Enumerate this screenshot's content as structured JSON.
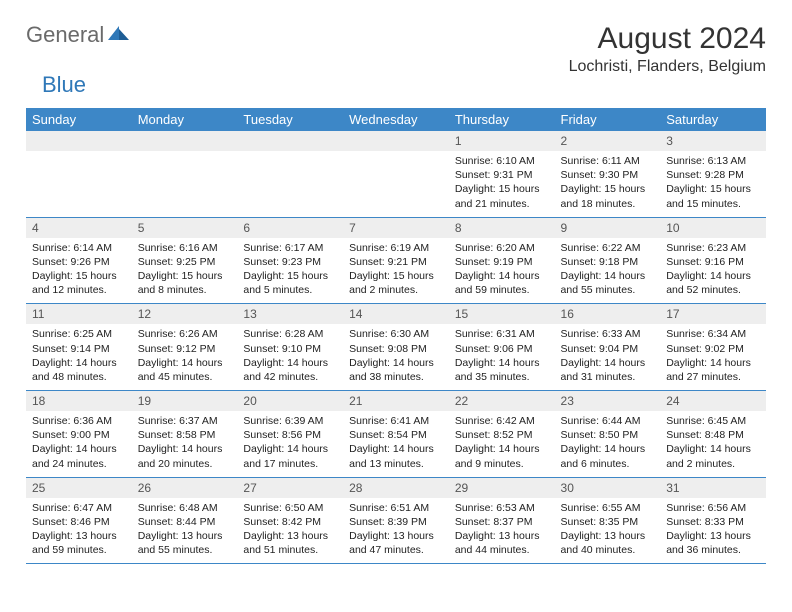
{
  "logo": {
    "general": "General",
    "blue": "Blue"
  },
  "title": {
    "month": "August 2024",
    "location": "Lochristi, Flanders, Belgium"
  },
  "colors": {
    "header_bg": "#3d87c7",
    "header_text": "#ffffff",
    "daynum_bg": "#eeeeee",
    "logo_gray": "#6a6a6a",
    "logo_blue": "#2f78b8",
    "border": "#3d87c7"
  },
  "weekdays": [
    "Sunday",
    "Monday",
    "Tuesday",
    "Wednesday",
    "Thursday",
    "Friday",
    "Saturday"
  ],
  "weeks": [
    [
      null,
      null,
      null,
      null,
      {
        "day": 1,
        "sunrise": "6:10 AM",
        "sunset": "9:31 PM",
        "daylight": "15 hours and 21 minutes."
      },
      {
        "day": 2,
        "sunrise": "6:11 AM",
        "sunset": "9:30 PM",
        "daylight": "15 hours and 18 minutes."
      },
      {
        "day": 3,
        "sunrise": "6:13 AM",
        "sunset": "9:28 PM",
        "daylight": "15 hours and 15 minutes."
      }
    ],
    [
      {
        "day": 4,
        "sunrise": "6:14 AM",
        "sunset": "9:26 PM",
        "daylight": "15 hours and 12 minutes."
      },
      {
        "day": 5,
        "sunrise": "6:16 AM",
        "sunset": "9:25 PM",
        "daylight": "15 hours and 8 minutes."
      },
      {
        "day": 6,
        "sunrise": "6:17 AM",
        "sunset": "9:23 PM",
        "daylight": "15 hours and 5 minutes."
      },
      {
        "day": 7,
        "sunrise": "6:19 AM",
        "sunset": "9:21 PM",
        "daylight": "15 hours and 2 minutes."
      },
      {
        "day": 8,
        "sunrise": "6:20 AM",
        "sunset": "9:19 PM",
        "daylight": "14 hours and 59 minutes."
      },
      {
        "day": 9,
        "sunrise": "6:22 AM",
        "sunset": "9:18 PM",
        "daylight": "14 hours and 55 minutes."
      },
      {
        "day": 10,
        "sunrise": "6:23 AM",
        "sunset": "9:16 PM",
        "daylight": "14 hours and 52 minutes."
      }
    ],
    [
      {
        "day": 11,
        "sunrise": "6:25 AM",
        "sunset": "9:14 PM",
        "daylight": "14 hours and 48 minutes."
      },
      {
        "day": 12,
        "sunrise": "6:26 AM",
        "sunset": "9:12 PM",
        "daylight": "14 hours and 45 minutes."
      },
      {
        "day": 13,
        "sunrise": "6:28 AM",
        "sunset": "9:10 PM",
        "daylight": "14 hours and 42 minutes."
      },
      {
        "day": 14,
        "sunrise": "6:30 AM",
        "sunset": "9:08 PM",
        "daylight": "14 hours and 38 minutes."
      },
      {
        "day": 15,
        "sunrise": "6:31 AM",
        "sunset": "9:06 PM",
        "daylight": "14 hours and 35 minutes."
      },
      {
        "day": 16,
        "sunrise": "6:33 AM",
        "sunset": "9:04 PM",
        "daylight": "14 hours and 31 minutes."
      },
      {
        "day": 17,
        "sunrise": "6:34 AM",
        "sunset": "9:02 PM",
        "daylight": "14 hours and 27 minutes."
      }
    ],
    [
      {
        "day": 18,
        "sunrise": "6:36 AM",
        "sunset": "9:00 PM",
        "daylight": "14 hours and 24 minutes."
      },
      {
        "day": 19,
        "sunrise": "6:37 AM",
        "sunset": "8:58 PM",
        "daylight": "14 hours and 20 minutes."
      },
      {
        "day": 20,
        "sunrise": "6:39 AM",
        "sunset": "8:56 PM",
        "daylight": "14 hours and 17 minutes."
      },
      {
        "day": 21,
        "sunrise": "6:41 AM",
        "sunset": "8:54 PM",
        "daylight": "14 hours and 13 minutes."
      },
      {
        "day": 22,
        "sunrise": "6:42 AM",
        "sunset": "8:52 PM",
        "daylight": "14 hours and 9 minutes."
      },
      {
        "day": 23,
        "sunrise": "6:44 AM",
        "sunset": "8:50 PM",
        "daylight": "14 hours and 6 minutes."
      },
      {
        "day": 24,
        "sunrise": "6:45 AM",
        "sunset": "8:48 PM",
        "daylight": "14 hours and 2 minutes."
      }
    ],
    [
      {
        "day": 25,
        "sunrise": "6:47 AM",
        "sunset": "8:46 PM",
        "daylight": "13 hours and 59 minutes."
      },
      {
        "day": 26,
        "sunrise": "6:48 AM",
        "sunset": "8:44 PM",
        "daylight": "13 hours and 55 minutes."
      },
      {
        "day": 27,
        "sunrise": "6:50 AM",
        "sunset": "8:42 PM",
        "daylight": "13 hours and 51 minutes."
      },
      {
        "day": 28,
        "sunrise": "6:51 AM",
        "sunset": "8:39 PM",
        "daylight": "13 hours and 47 minutes."
      },
      {
        "day": 29,
        "sunrise": "6:53 AM",
        "sunset": "8:37 PM",
        "daylight": "13 hours and 44 minutes."
      },
      {
        "day": 30,
        "sunrise": "6:55 AM",
        "sunset": "8:35 PM",
        "daylight": "13 hours and 40 minutes."
      },
      {
        "day": 31,
        "sunrise": "6:56 AM",
        "sunset": "8:33 PM",
        "daylight": "13 hours and 36 minutes."
      }
    ]
  ],
  "labels": {
    "sunrise": "Sunrise:",
    "sunset": "Sunset:",
    "daylight": "Daylight:"
  }
}
